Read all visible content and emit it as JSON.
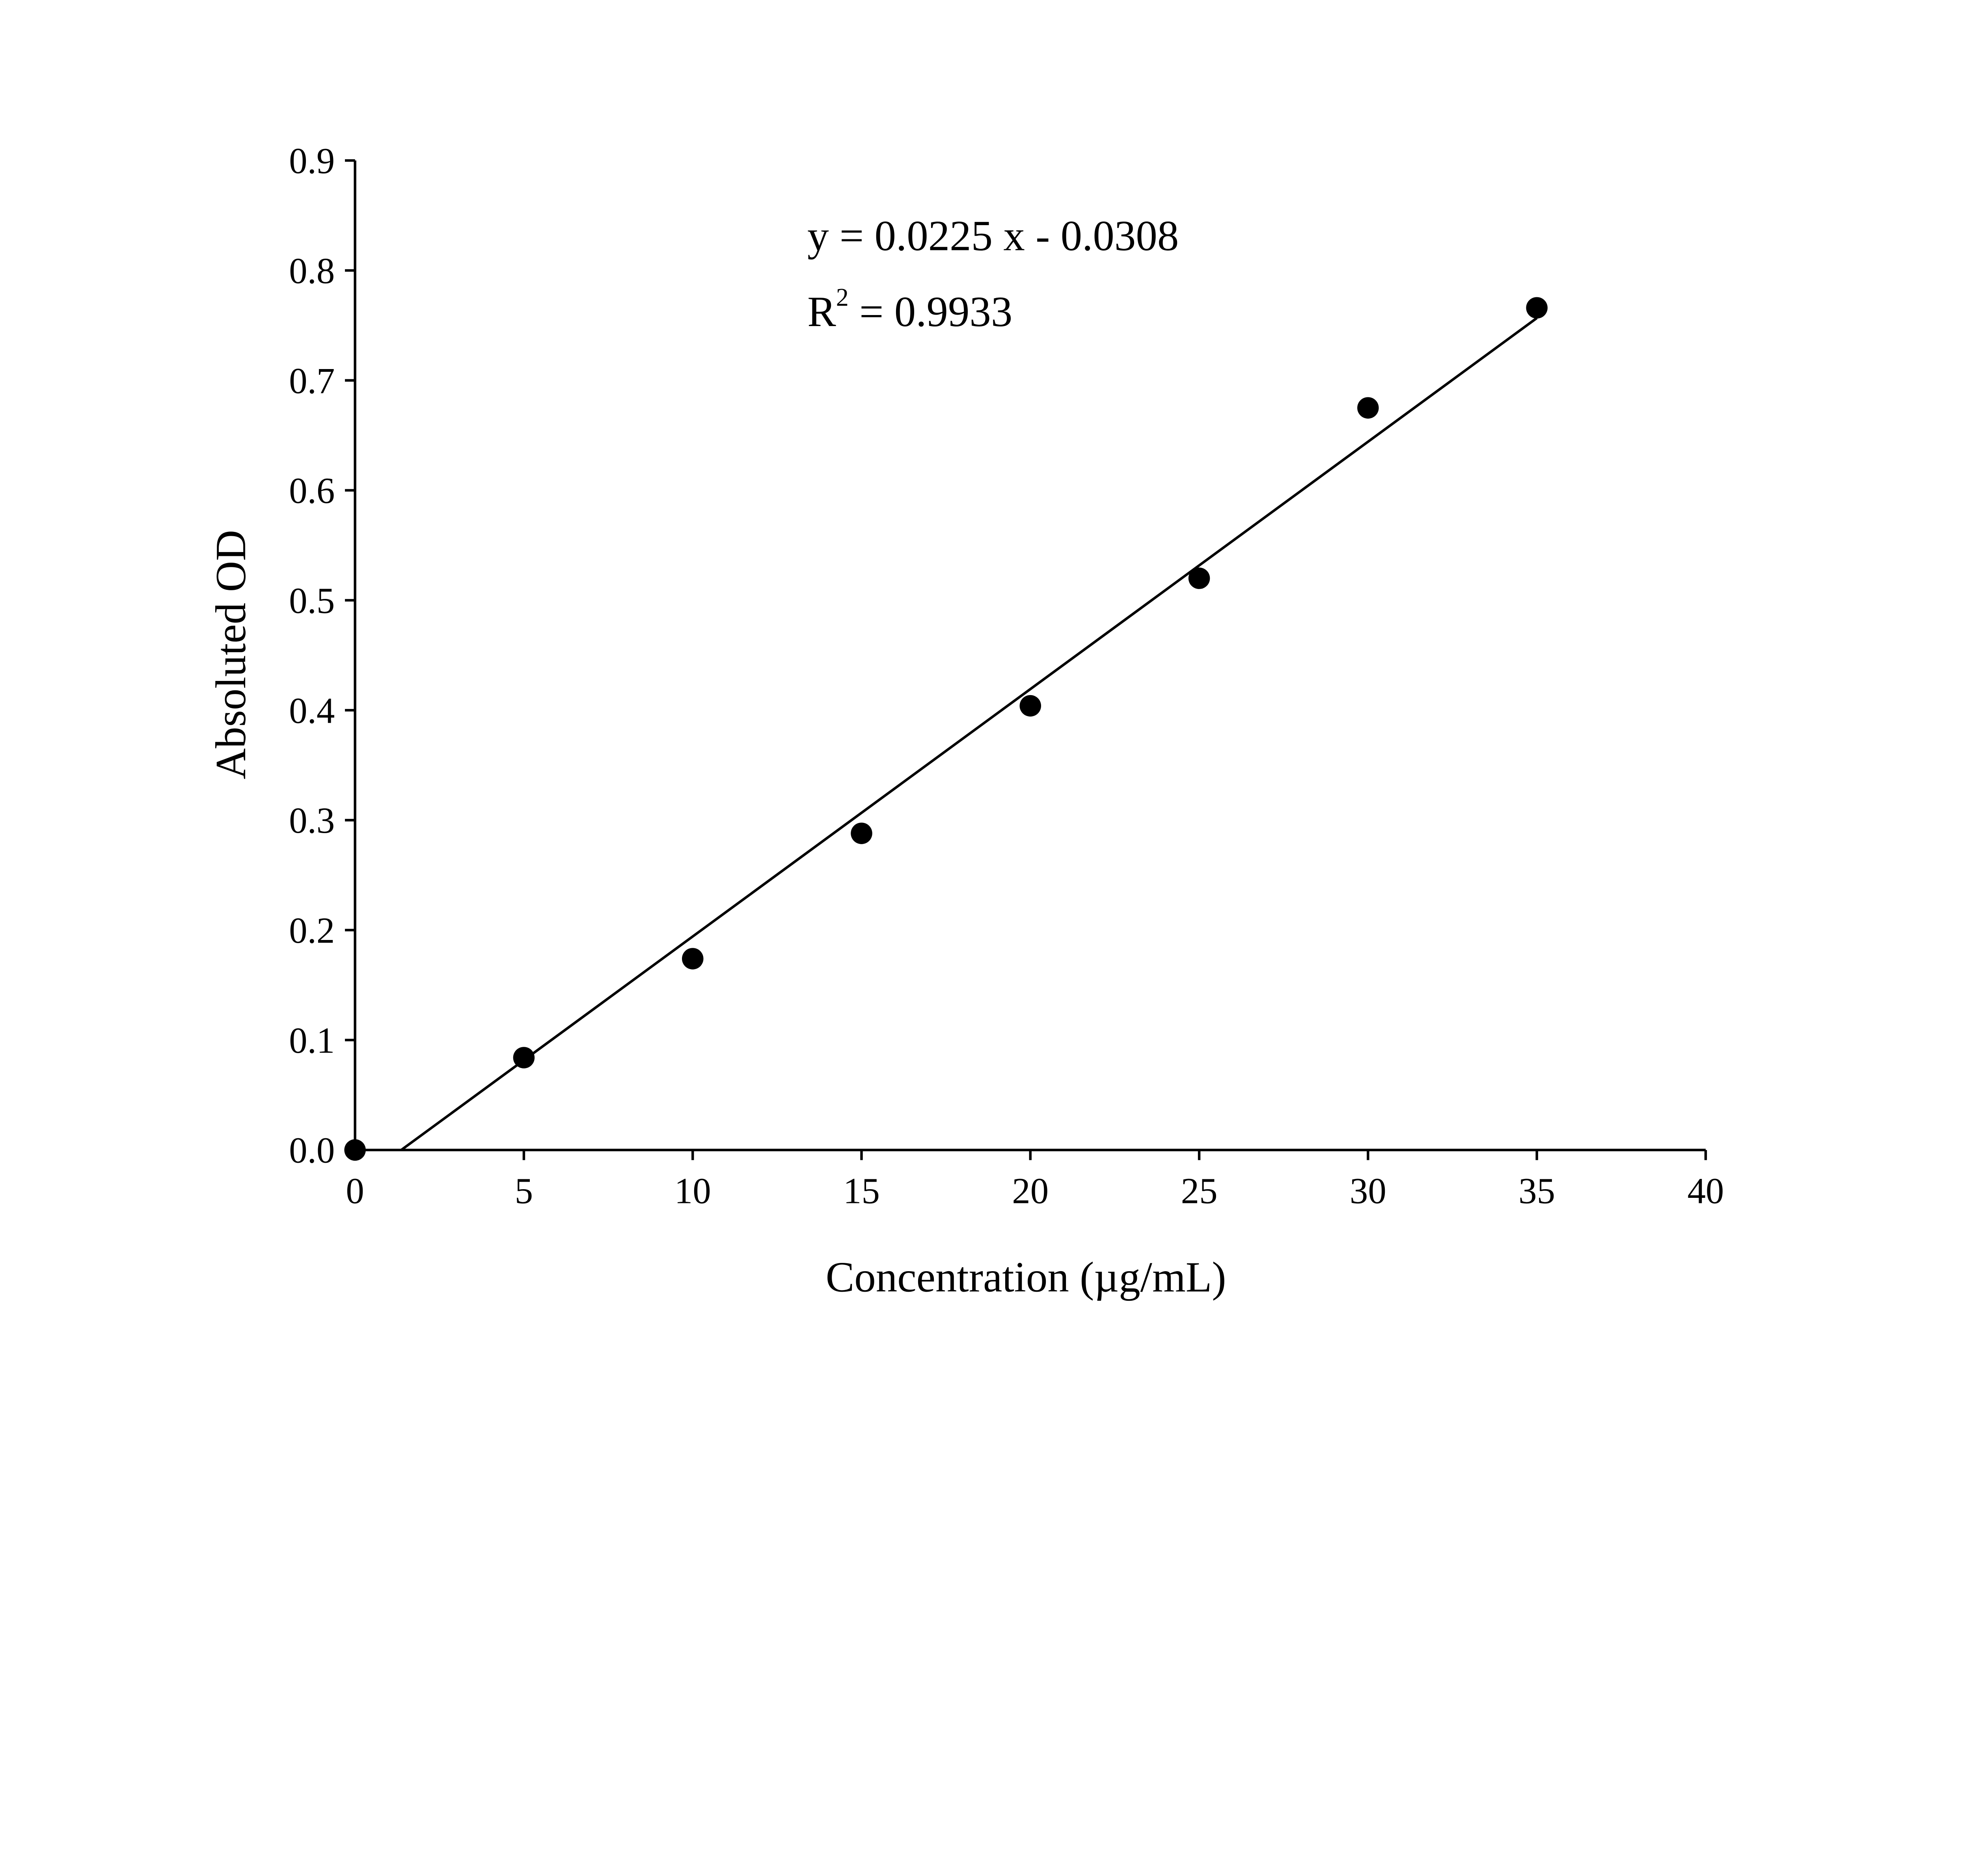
{
  "chart_data": {
    "type": "scatter",
    "title": "",
    "xlabel": "Concentration (µg/mL)",
    "ylabel": "Absoluted OD",
    "xlim": [
      0,
      40
    ],
    "ylim": [
      0,
      0.9
    ],
    "xticks": [
      "0",
      "5",
      "10",
      "15",
      "20",
      "25",
      "30",
      "35",
      "40"
    ],
    "yticks": [
      "0.0",
      "0.1",
      "0.2",
      "0.3",
      "0.4",
      "0.5",
      "0.6",
      "0.7",
      "0.8",
      "0.9"
    ],
    "grid": false,
    "series": [
      {
        "name": "data",
        "x": [
          0,
          5,
          10,
          15,
          20,
          25,
          30,
          35
        ],
        "y": [
          0.0,
          0.084,
          0.174,
          0.288,
          0.404,
          0.52,
          0.675,
          0.766
        ],
        "color": "#000000"
      }
    ],
    "fit": {
      "slope": 0.0225,
      "intercept": -0.0308,
      "x_range": [
        1.37,
        35
      ]
    },
    "annotations": {
      "equation": "y = 0.0225 x - 0.0308",
      "r2_prefix": "R",
      "r2_sup": "2",
      "r2_value": " = 0.9933"
    }
  }
}
